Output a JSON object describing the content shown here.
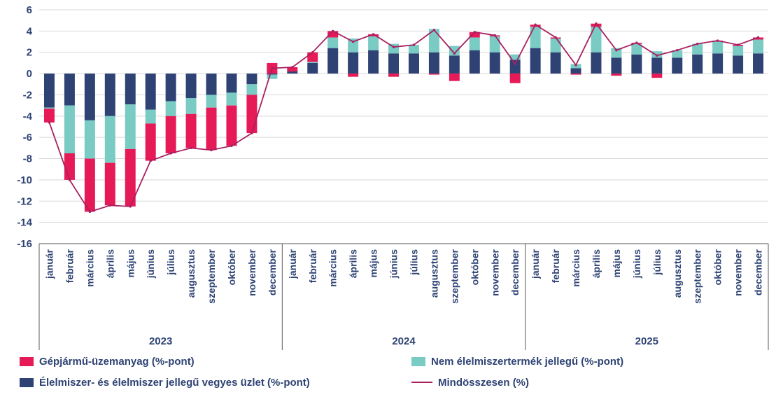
{
  "styles": {
    "axis_text_color": "#2e4374",
    "grid_color": "#d9d9d9",
    "frame_color": "#595959",
    "background": "#ffffff"
  },
  "chart_data": {
    "type": "bar",
    "stacked": true,
    "title": "",
    "xlabel": "",
    "ylabel": "",
    "ylim": [
      -16,
      6
    ],
    "ytick_step": 2,
    "grid": true,
    "legend_position": "bottom",
    "groups": [
      "2023",
      "2024",
      "2025"
    ],
    "month_labels": [
      "január",
      "február",
      "március",
      "április",
      "május",
      "június",
      "július",
      "augusztus",
      "szeptember",
      "október",
      "november",
      "december"
    ],
    "series": [
      {
        "name": "Élelmiszer- és élelmiszer jellegű vegyes üzlet (%-pont)",
        "color": "#2e4374",
        "values": [
          -3.2,
          -3.0,
          -4.4,
          -4.0,
          -2.9,
          -3.4,
          -2.6,
          -2.3,
          -2.0,
          -1.8,
          -1.0,
          -0.1,
          0.2,
          1.0,
          2.4,
          2.0,
          2.2,
          1.9,
          1.9,
          2.0,
          1.7,
          2.2,
          2.0,
          1.3,
          2.4,
          2.0,
          0.5,
          2.0,
          1.5,
          1.8,
          1.5,
          1.5,
          1.8,
          1.9,
          1.7,
          1.9
        ]
      },
      {
        "name": "Nem élelmiszertermék jellegű (%-pont)",
        "color": "#79cbc4",
        "values": [
          -0.1,
          -4.5,
          -3.6,
          -4.4,
          -4.2,
          -1.3,
          -1.4,
          -1.5,
          -1.2,
          -1.2,
          -1.0,
          -0.4,
          0.0,
          0.1,
          1.0,
          1.3,
          1.3,
          0.9,
          0.8,
          2.2,
          0.9,
          1.2,
          1.5,
          0.5,
          2.0,
          1.3,
          0.4,
          2.4,
          0.9,
          1.0,
          0.6,
          0.7,
          1.0,
          1.1,
          0.9,
          1.3
        ]
      },
      {
        "name": "Gépjármű-üzemanyag (%-pont)",
        "color": "#e61a57",
        "values": [
          -1.3,
          -2.5,
          -5.0,
          -4.0,
          -5.4,
          -3.5,
          -3.5,
          -3.2,
          -4.0,
          -3.8,
          -3.6,
          1.0,
          0.4,
          0.9,
          0.6,
          -0.3,
          0.2,
          -0.3,
          0.0,
          -0.1,
          -0.7,
          0.5,
          0.1,
          -0.9,
          0.2,
          0.1,
          -0.1,
          0.3,
          -0.2,
          0.1,
          -0.4,
          0.0,
          0.0,
          0.1,
          0.1,
          0.2
        ]
      }
    ],
    "line": {
      "name": "Mindösszesen (%)",
      "color": "#a82060",
      "values": [
        -4.6,
        -10.0,
        -13.0,
        -12.4,
        -12.5,
        -8.2,
        -7.5,
        -7.0,
        -7.2,
        -6.8,
        -5.6,
        0.5,
        0.6,
        2.0,
        4.0,
        3.0,
        3.7,
        2.5,
        2.7,
        4.1,
        1.9,
        3.9,
        3.6,
        0.9,
        4.6,
        3.4,
        0.8,
        4.7,
        2.2,
        2.9,
        1.7,
        2.2,
        2.8,
        3.1,
        2.7,
        3.4
      ]
    }
  },
  "legend": {
    "items": [
      {
        "label": "Gépjármű-üzemanyag (%-pont)",
        "color": "#e61a57",
        "swatch": "rect"
      },
      {
        "label": "Nem élelmiszertermék jellegű (%-pont)",
        "color": "#79cbc4",
        "swatch": "rect"
      },
      {
        "label": "Élelmiszer- és élelmiszer jellegű vegyes üzlet (%-pont)",
        "color": "#2e4374",
        "swatch": "rect"
      },
      {
        "label": "Mindösszesen (%)",
        "color": "#a82060",
        "swatch": "line"
      }
    ]
  }
}
